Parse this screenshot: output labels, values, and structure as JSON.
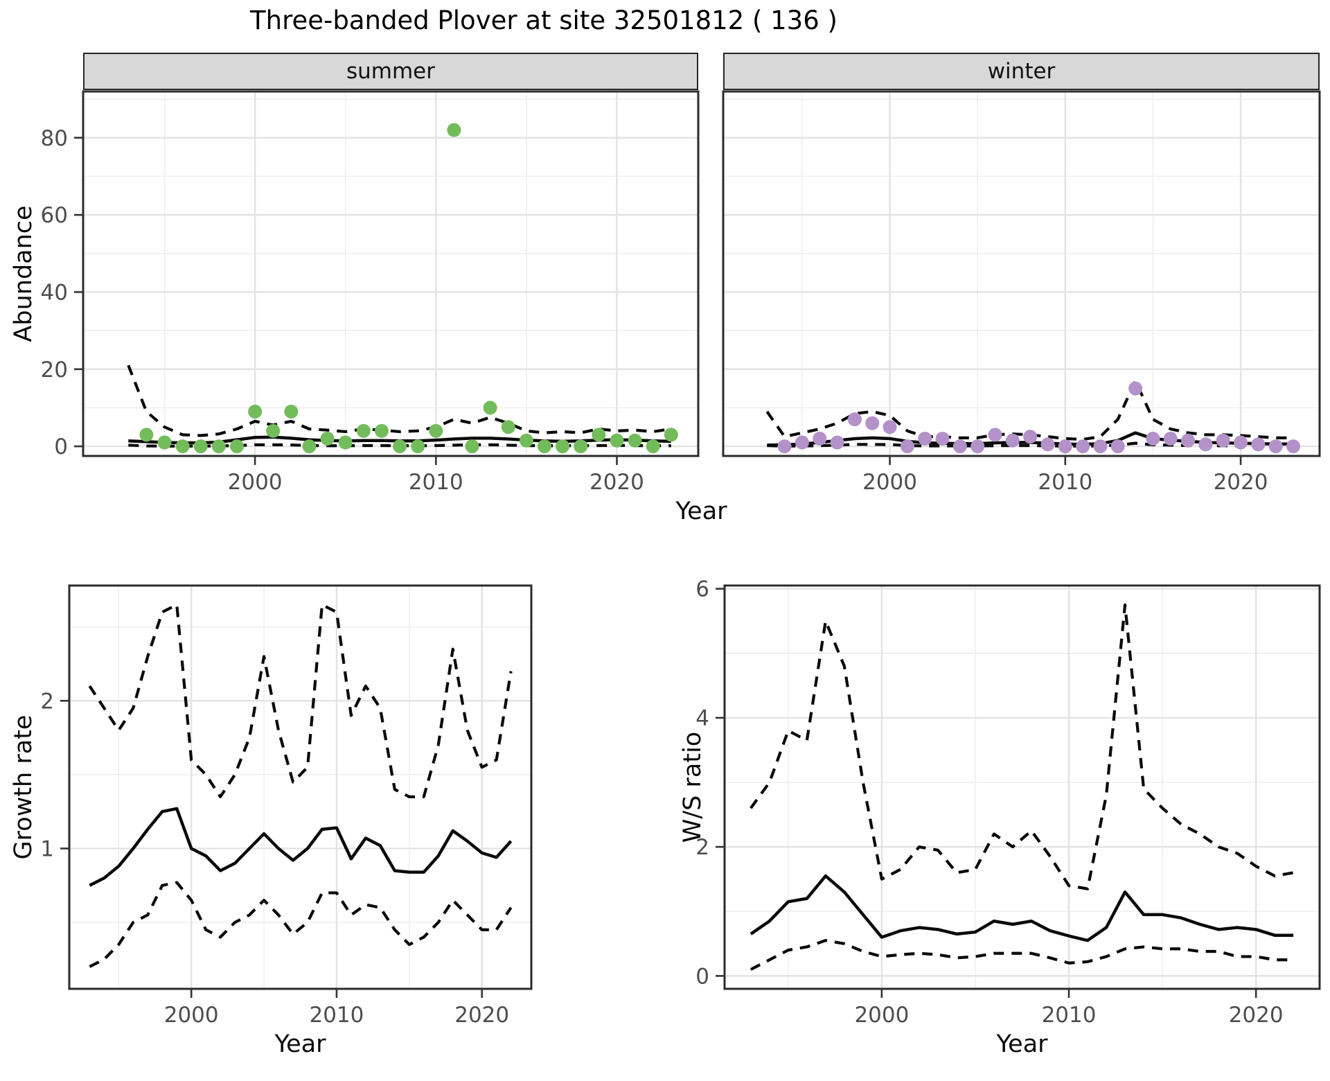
{
  "title": "Three-banded Plover at site 32501812 ( 136 )",
  "top_row": {
    "ylabel": "Abundance",
    "xlabel": "Year",
    "facets": [
      "summer",
      "winter"
    ]
  },
  "bottom_left": {
    "ylabel": "Growth rate",
    "xlabel": "Year"
  },
  "bottom_right": {
    "ylabel": "W/S ratio",
    "xlabel": "Year"
  },
  "colors": {
    "summer_point": "#73bc5b",
    "winter_point": "#b292c8",
    "line": "#0a0a0a",
    "grid_major": "#e3e3e3",
    "grid_minor": "#efefef",
    "axis_text": "#4d4d4d",
    "tick_mark": "#333333",
    "panel_border": "#2b2b2b",
    "strip_bg": "#d8d8d8"
  },
  "chart_data": [
    {
      "id": "abundance-summer",
      "panel": "top-left",
      "type": "scatter",
      "facet_label": "summer",
      "xlabel": "Year",
      "ylabel": "Abundance",
      "x_domain": [
        1990.5,
        2024.5
      ],
      "y_domain": [
        -2.5,
        92
      ],
      "x_ticks": [
        2000,
        2010,
        2020
      ],
      "x_minor_ticks": [
        1995,
        2005,
        2015
      ],
      "y_ticks": [
        0,
        20,
        40,
        60,
        80
      ],
      "y_minor_ticks": [
        10,
        30,
        50,
        70,
        90
      ],
      "show_y_axis": true,
      "years": [
        1993,
        1994,
        1995,
        1996,
        1997,
        1998,
        1999,
        2000,
        2001,
        2002,
        2003,
        2004,
        2005,
        2006,
        2007,
        2008,
        2009,
        2010,
        2011,
        2012,
        2013,
        2014,
        2015,
        2016,
        2017,
        2018,
        2019,
        2020,
        2021,
        2022,
        2023
      ],
      "series": [
        {
          "name": "upper_ci",
          "style": "dashed",
          "values": [
            21,
            9,
            5,
            3,
            2.8,
            3.2,
            4.5,
            6.5,
            5.5,
            6.5,
            4.5,
            4.2,
            3.8,
            4.5,
            4.2,
            3.8,
            4,
            5,
            7,
            6,
            7.5,
            6,
            4,
            3.5,
            3.8,
            3.5,
            4.5,
            4,
            4.2,
            3.8,
            4.5
          ]
        },
        {
          "name": "fit",
          "style": "solid",
          "values": [
            1.4,
            1.2,
            1.0,
            0.9,
            0.9,
            1.1,
            1.7,
            2.3,
            2.4,
            2.1,
            1.7,
            1.5,
            1.4,
            1.5,
            1.5,
            1.4,
            1.4,
            1.6,
            1.9,
            2.1,
            2.1,
            1.9,
            1.6,
            1.4,
            1.3,
            1.4,
            1.6,
            1.7,
            1.6,
            1.4,
            1.3
          ]
        },
        {
          "name": "lower_ci",
          "style": "dashed",
          "values": [
            0.3,
            0.1,
            0.05,
            0.05,
            0.05,
            0.1,
            0.2,
            0.4,
            0.4,
            0.35,
            0.2,
            0.15,
            0.15,
            0.2,
            0.2,
            0.15,
            0.15,
            0.2,
            0.3,
            0.4,
            0.4,
            0.3,
            0.2,
            0.15,
            0.15,
            0.15,
            0.2,
            0.25,
            0.2,
            0.15,
            0.15
          ]
        }
      ],
      "points": {
        "color_key": "summer_point",
        "years": [
          1994,
          1995,
          1996,
          1997,
          1998,
          1999,
          2000,
          2001,
          2002,
          2003,
          2004,
          2005,
          2006,
          2007,
          2008,
          2009,
          2010,
          2011,
          2012,
          2013,
          2014,
          2015,
          2016,
          2017,
          2018,
          2019,
          2020,
          2021,
          2022,
          2023
        ],
        "values": [
          3,
          1,
          0,
          0,
          0,
          0,
          9,
          4,
          9,
          0,
          2,
          1,
          4,
          4,
          0,
          0,
          4,
          82,
          0,
          10,
          5,
          1.5,
          0,
          0,
          0,
          3,
          1.5,
          1.5,
          0,
          3
        ]
      }
    },
    {
      "id": "abundance-winter",
      "panel": "top-right",
      "type": "scatter",
      "facet_label": "winter",
      "xlabel": "Year",
      "ylabel": "Abundance",
      "x_domain": [
        1990.5,
        2024.5
      ],
      "y_domain": [
        -2.5,
        92
      ],
      "x_ticks": [
        2000,
        2010,
        2020
      ],
      "x_minor_ticks": [
        1995,
        2005,
        2015
      ],
      "y_ticks": [
        0,
        20,
        40,
        60,
        80
      ],
      "y_minor_ticks": [
        10,
        30,
        50,
        70,
        90
      ],
      "show_y_axis": false,
      "years": [
        1993,
        1994,
        1995,
        1996,
        1997,
        1998,
        1999,
        2000,
        2001,
        2002,
        2003,
        2004,
        2005,
        2006,
        2007,
        2008,
        2009,
        2010,
        2011,
        2012,
        2013,
        2014,
        2015,
        2016,
        2017,
        2018,
        2019,
        2020,
        2021,
        2022,
        2023
      ],
      "series": [
        {
          "name": "upper_ci",
          "style": "dashed",
          "values": [
            9,
            2.5,
            3.5,
            4.5,
            6,
            8.5,
            9,
            8,
            4,
            2.5,
            2.5,
            2.2,
            2.2,
            3,
            3.2,
            3,
            2.5,
            2,
            1.8,
            2.5,
            7,
            17,
            7,
            4.5,
            3.5,
            3,
            3,
            2.8,
            2.5,
            2.2,
            2.2
          ]
        },
        {
          "name": "fit",
          "style": "solid",
          "values": [
            0.3,
            0.4,
            0.6,
            1.0,
            1.5,
            2.0,
            2.2,
            2.0,
            1.3,
            0.9,
            0.8,
            0.7,
            0.7,
            0.9,
            1.0,
            1.0,
            0.8,
            0.6,
            0.5,
            0.7,
            1.5,
            3.5,
            2.0,
            1.6,
            1.3,
            1.0,
            0.9,
            0.8,
            0.7,
            0.6,
            0.6
          ]
        },
        {
          "name": "lower_ci",
          "style": "dashed",
          "values": [
            0.2,
            0.05,
            0.1,
            0.15,
            0.3,
            0.5,
            0.5,
            0.45,
            0.2,
            0.1,
            0.1,
            0.1,
            0.1,
            0.15,
            0.2,
            0.2,
            0.1,
            0.05,
            0.05,
            0.1,
            0.3,
            0.8,
            0.4,
            0.3,
            0.2,
            0.15,
            0.15,
            0.15,
            0.1,
            0.1,
            0.1
          ]
        }
      ],
      "points": {
        "color_key": "winter_point",
        "years": [
          1994,
          1995,
          1996,
          1997,
          1998,
          1999,
          2000,
          2001,
          2002,
          2003,
          2004,
          2005,
          2006,
          2007,
          2008,
          2009,
          2010,
          2011,
          2012,
          2013,
          2014,
          2015,
          2016,
          2017,
          2018,
          2019,
          2020,
          2021,
          2022,
          2023
        ],
        "values": [
          0,
          1,
          2,
          1,
          7,
          6,
          5,
          0,
          2,
          2,
          0,
          0,
          3,
          1.5,
          2.5,
          0.5,
          0,
          0,
          0,
          0,
          15,
          2,
          2,
          1.5,
          0.5,
          1.5,
          1,
          0.5,
          0,
          0
        ]
      }
    },
    {
      "id": "growth-rate",
      "panel": "bottom-left",
      "type": "line",
      "xlabel": "Year",
      "ylabel": "Growth rate",
      "x_domain": [
        1991.6,
        2023.4
      ],
      "y_domain": [
        0.05,
        2.78
      ],
      "x_ticks": [
        2000,
        2010,
        2020
      ],
      "x_minor_ticks": [
        1995,
        2005,
        2015
      ],
      "y_ticks": [
        1,
        2
      ],
      "y_minor_ticks": [
        0.5,
        1.5,
        2.5
      ],
      "show_y_axis": true,
      "years": [
        1993,
        1994,
        1995,
        1996,
        1997,
        1998,
        1999,
        2000,
        2001,
        2002,
        2003,
        2004,
        2005,
        2006,
        2007,
        2008,
        2009,
        2010,
        2011,
        2012,
        2013,
        2014,
        2015,
        2016,
        2017,
        2018,
        2019,
        2020,
        2021,
        2022
      ],
      "series": [
        {
          "name": "upper_ci",
          "style": "dashed",
          "values": [
            2.1,
            1.95,
            1.8,
            1.95,
            2.3,
            2.6,
            2.65,
            1.6,
            1.5,
            1.35,
            1.5,
            1.75,
            2.3,
            1.8,
            1.45,
            1.55,
            2.65,
            2.6,
            1.9,
            2.1,
            1.95,
            1.4,
            1.35,
            1.35,
            1.7,
            2.35,
            1.8,
            1.55,
            1.6,
            2.2
          ]
        },
        {
          "name": "fit",
          "style": "solid",
          "values": [
            0.75,
            0.8,
            0.88,
            1.0,
            1.13,
            1.25,
            1.27,
            1.0,
            0.95,
            0.85,
            0.9,
            1.0,
            1.1,
            1.0,
            0.92,
            1.0,
            1.13,
            1.14,
            0.93,
            1.07,
            1.02,
            0.85,
            0.84,
            0.84,
            0.95,
            1.12,
            1.05,
            0.97,
            0.94,
            1.05
          ]
        },
        {
          "name": "lower_ci",
          "style": "dashed",
          "values": [
            0.2,
            0.25,
            0.35,
            0.5,
            0.55,
            0.75,
            0.77,
            0.65,
            0.45,
            0.4,
            0.5,
            0.55,
            0.65,
            0.55,
            0.42,
            0.5,
            0.7,
            0.7,
            0.55,
            0.62,
            0.6,
            0.45,
            0.35,
            0.4,
            0.5,
            0.65,
            0.55,
            0.45,
            0.45,
            0.6
          ]
        }
      ]
    },
    {
      "id": "ws-ratio",
      "panel": "bottom-right",
      "type": "line",
      "xlabel": "Year",
      "ylabel": "W/S ratio",
      "x_domain": [
        1991.6,
        2023.4
      ],
      "y_domain": [
        -0.2,
        6.05
      ],
      "x_ticks": [
        2000,
        2010,
        2020
      ],
      "x_minor_ticks": [
        1995,
        2005,
        2015
      ],
      "y_ticks": [
        0,
        2,
        4,
        6
      ],
      "y_minor_ticks": [
        1,
        3,
        5
      ],
      "show_y_axis": true,
      "years": [
        1993,
        1994,
        1995,
        1996,
        1997,
        1998,
        1999,
        2000,
        2001,
        2002,
        2003,
        2004,
        2005,
        2006,
        2007,
        2008,
        2009,
        2010,
        2011,
        2012,
        2013,
        2014,
        2015,
        2016,
        2017,
        2018,
        2019,
        2020,
        2021,
        2022
      ],
      "series": [
        {
          "name": "upper_ci",
          "style": "dashed",
          "values": [
            2.6,
            3.0,
            3.8,
            3.65,
            5.5,
            4.8,
            3.0,
            1.5,
            1.65,
            2.0,
            1.95,
            1.6,
            1.65,
            2.2,
            2.0,
            2.25,
            1.85,
            1.4,
            1.35,
            2.8,
            5.75,
            2.9,
            2.6,
            2.35,
            2.2,
            2.0,
            1.9,
            1.7,
            1.55,
            1.6
          ]
        },
        {
          "name": "fit",
          "style": "solid",
          "values": [
            0.65,
            0.85,
            1.15,
            1.2,
            1.55,
            1.3,
            0.95,
            0.6,
            0.7,
            0.75,
            0.72,
            0.65,
            0.68,
            0.85,
            0.8,
            0.85,
            0.7,
            0.62,
            0.55,
            0.75,
            1.3,
            0.95,
            0.95,
            0.9,
            0.8,
            0.72,
            0.75,
            0.72,
            0.63,
            0.63
          ]
        },
        {
          "name": "lower_ci",
          "style": "dashed",
          "values": [
            0.1,
            0.25,
            0.4,
            0.45,
            0.55,
            0.5,
            0.38,
            0.3,
            0.33,
            0.35,
            0.33,
            0.28,
            0.3,
            0.35,
            0.35,
            0.35,
            0.28,
            0.2,
            0.22,
            0.3,
            0.42,
            0.45,
            0.42,
            0.42,
            0.38,
            0.38,
            0.3,
            0.3,
            0.25,
            0.25
          ]
        }
      ]
    }
  ]
}
